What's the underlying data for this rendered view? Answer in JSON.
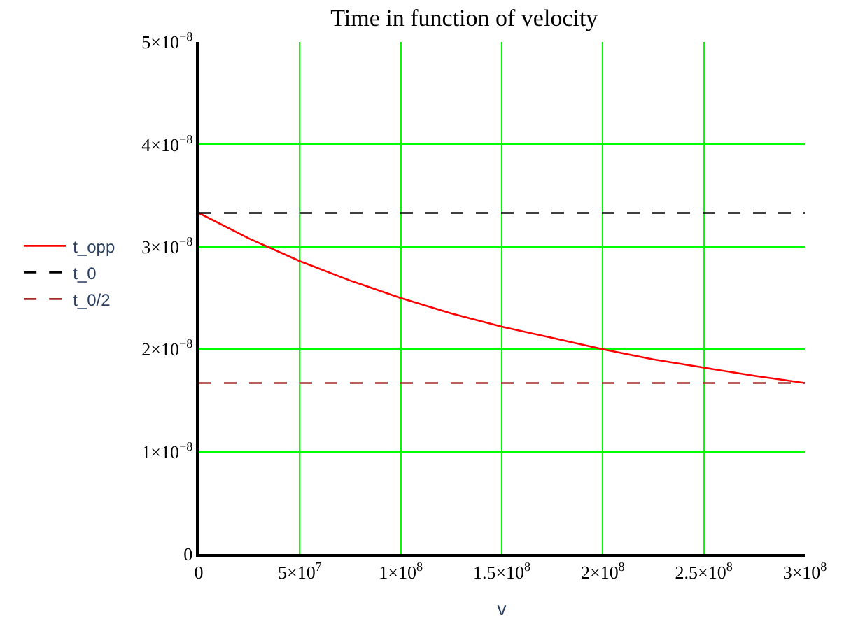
{
  "chart_data": {
    "type": "line",
    "title": "Time in function of velocity",
    "xlabel": "v",
    "series": [
      {
        "name": "t_opp",
        "color": "#ff0000",
        "line_style": "solid",
        "x": [
          0,
          25000000,
          50000000,
          75000000,
          100000000,
          125000000,
          150000000,
          175000000,
          200000000,
          225000000,
          250000000,
          275000000,
          300000000
        ],
        "values": [
          3.33e-08,
          3.08e-08,
          2.86e-08,
          2.67e-08,
          2.5e-08,
          2.35e-08,
          2.22e-08,
          2.11e-08,
          2e-08,
          1.9e-08,
          1.82e-08,
          1.74e-08,
          1.67e-08
        ]
      },
      {
        "name": "t_0",
        "color": "#000000",
        "line_style": "dashed",
        "x": [
          0,
          300000000
        ],
        "values": [
          3.33e-08,
          3.33e-08
        ]
      },
      {
        "name": "t_0/2",
        "color": "#a52a2a",
        "line_style": "dashed",
        "x": [
          0,
          300000000
        ],
        "values": [
          1.67e-08,
          1.67e-08
        ]
      }
    ],
    "xlim": [
      0,
      300000000
    ],
    "ylim": [
      0,
      5e-08
    ],
    "xticks": [
      0,
      {
        "value": 50000000,
        "label": "5×10$^{7}$"
      },
      {
        "value": 100000000,
        "label": "1×10$^{8}$"
      },
      {
        "value": 150000000,
        "label": "1.5×10$^{8}$"
      },
      {
        "value": 200000000,
        "label": "2×10$^{8}$"
      },
      {
        "value": 250000000,
        "label": "2.5×10$^{8}$"
      },
      {
        "value": 300000000,
        "label": "3×10$^{8}$"
      }
    ],
    "yticks": [
      0,
      {
        "value": 1e-08,
        "label": "1×10$^{−8}$"
      },
      {
        "value": 2e-08,
        "label": "2×10$^{−8}$"
      },
      {
        "value": 3e-08,
        "label": "3×10$^{−8}$"
      },
      {
        "value": 4e-08,
        "label": "4×10$^{−8}$"
      },
      {
        "value": 5e-08,
        "label": "5×10$^{−8}$"
      }
    ],
    "grid": true,
    "legend": "left",
    "marker": "none"
  }
}
